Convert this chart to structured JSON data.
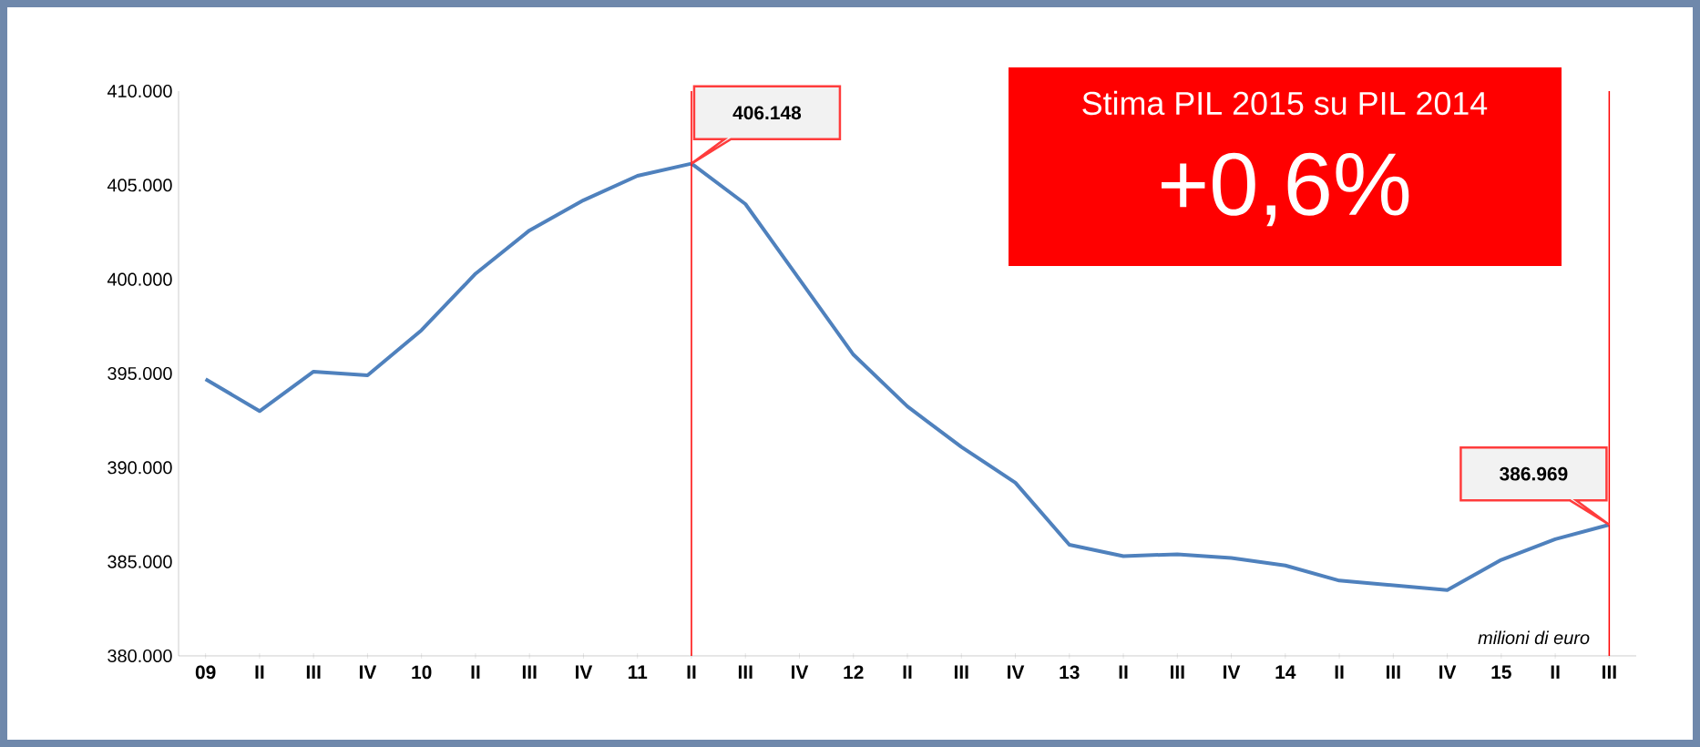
{
  "chart_data": {
    "type": "line",
    "title": "Stima PIL 2015 su PIL 2014",
    "subtitle": "+0,6%",
    "categories": [
      "09",
      "II",
      "III",
      "IV",
      "10",
      "II",
      "III",
      "IV",
      "11",
      "II",
      "III",
      "IV",
      "12",
      "II",
      "III",
      "IV",
      "13",
      "II",
      "III",
      "IV",
      "14",
      "II",
      "III",
      "IV",
      "15",
      "II",
      "III"
    ],
    "values": [
      394700,
      393000,
      395100,
      394900,
      397300,
      400300,
      402600,
      404200,
      405500,
      406148,
      404000,
      400000,
      396000,
      393250,
      391100,
      389200,
      385900,
      385300,
      385400,
      385200,
      384800,
      384000,
      383750,
      383500,
      385100,
      386200,
      386969
    ],
    "color": "#4f81bd",
    "ylim": [
      380000,
      410000
    ],
    "yticks": [
      {
        "value": 380000,
        "label": "380.000"
      },
      {
        "value": 385000,
        "label": "385.000"
      },
      {
        "value": 390000,
        "label": "390.000"
      },
      {
        "value": 395000,
        "label": "395.000"
      },
      {
        "value": 400000,
        "label": "400.000"
      },
      {
        "value": 405000,
        "label": "405.000"
      },
      {
        "value": 410000,
        "label": "410.000"
      }
    ],
    "annotations": [
      "406.148",
      "386.969",
      "milioni di euro"
    ]
  }
}
